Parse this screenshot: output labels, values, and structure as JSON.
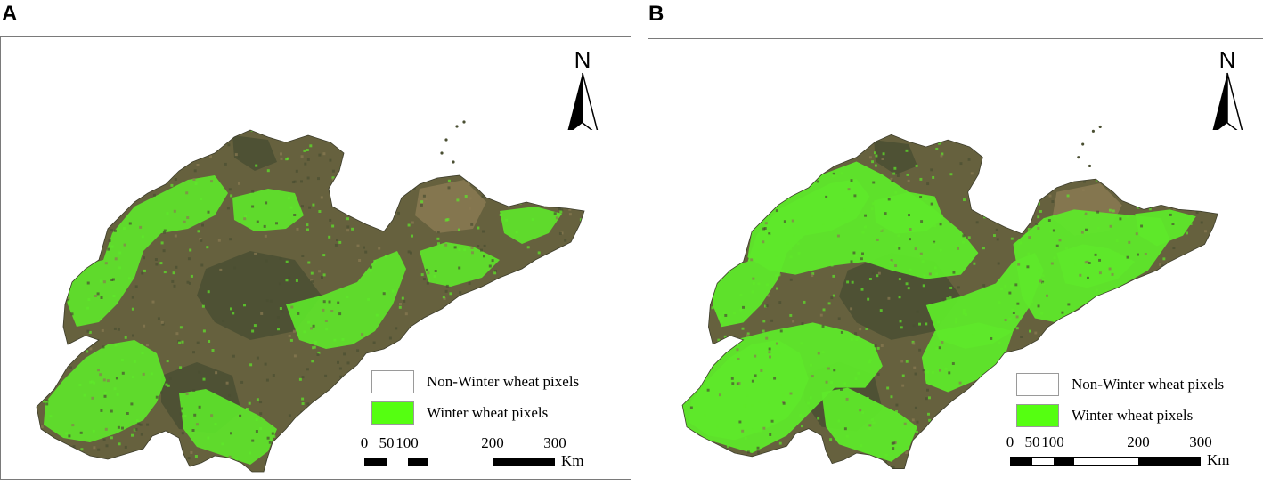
{
  "panels": [
    {
      "label": "A"
    },
    {
      "label": "B"
    }
  ],
  "north_arrow": {
    "letter": "N",
    "icon": "north-arrow-icon"
  },
  "legend": [
    {
      "label": "Non-Winter wheat pixels",
      "color": "#ffffff"
    },
    {
      "label": "Winter wheat pixels",
      "color": "#55ff11"
    }
  ],
  "scale_bar": {
    "ticks": [
      "0",
      "50",
      "100",
      "200",
      "300"
    ],
    "unit": "Km"
  },
  "colors": {
    "wheat": "#5ee82a",
    "land_dark": "#4a4f32",
    "land_mid": "#66613e",
    "land_brown": "#8a7a52",
    "frame": "#7a7a7a"
  }
}
